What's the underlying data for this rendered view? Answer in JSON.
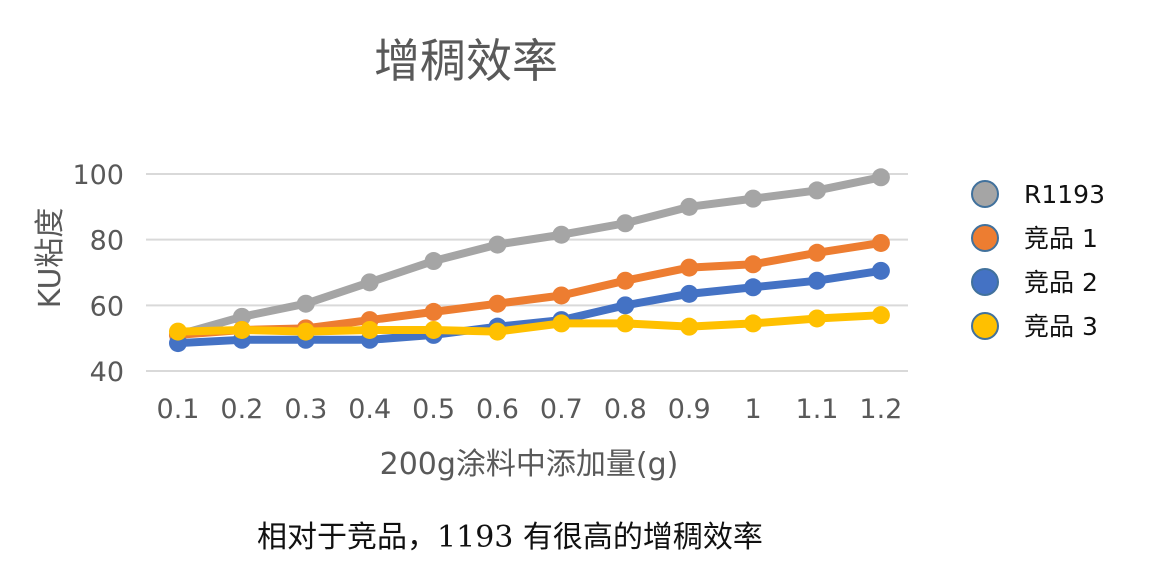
{
  "chart_data": {
    "type": "line",
    "title": "增稠效率",
    "xlabel": "200g涂料中添加量(g)",
    "ylabel": "KU粘度",
    "categories": [
      "0.1",
      "0.2",
      "0.3",
      "0.4",
      "0.5",
      "0.6",
      "0.7",
      "0.8",
      "0.9",
      "1",
      "1.1",
      "1.2"
    ],
    "ylim": [
      40,
      100
    ],
    "yticks": [
      40,
      60,
      80,
      100
    ],
    "grid": true,
    "legend_position": "right",
    "series": [
      {
        "name": "R1193",
        "color": "#A5A5A5",
        "values": [
          51,
          56.5,
          60.5,
          67,
          73.5,
          78.5,
          81.5,
          85,
          90,
          92.5,
          95,
          99
        ]
      },
      {
        "name": "竞品 1",
        "color": "#ED7D31",
        "values": [
          51,
          52.5,
          53,
          55.5,
          58,
          60.5,
          63,
          67.5,
          71.5,
          72.5,
          76,
          79
        ]
      },
      {
        "name": "竞品 2",
        "color": "#4472C4",
        "values": [
          48.5,
          49.5,
          49.5,
          49.5,
          51,
          53.5,
          55.5,
          60,
          63.5,
          65.5,
          67.5,
          70.5
        ]
      },
      {
        "name": "竞品 3",
        "color": "#FFC000",
        "values": [
          52,
          52.5,
          52,
          52.5,
          52.5,
          52,
          54.5,
          54.5,
          53.5,
          54.5,
          56,
          57
        ]
      }
    ]
  },
  "caption": "相对于竞品，1193 有很高的增稠效率"
}
